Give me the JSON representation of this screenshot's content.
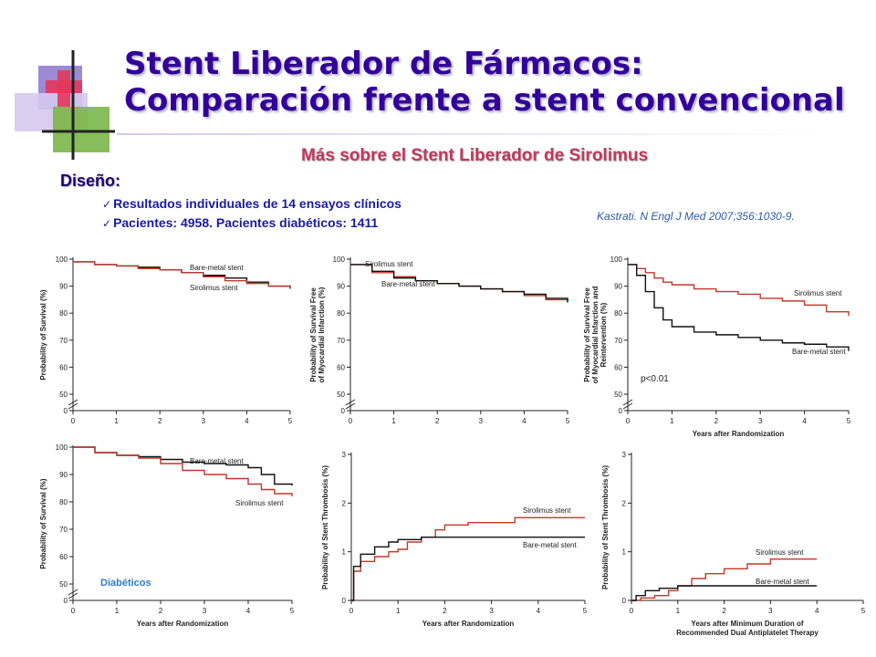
{
  "header": {
    "title_line1": "Stent Liberador de Fármacos:",
    "title_line2": "Comparación frente a stent convencional",
    "subtitle": "Más sobre el Stent Liberador de Sirolimus"
  },
  "design": {
    "heading": "Diseño:",
    "bullets": [
      "Resultados individuales de 14 ensayos clínicos",
      "Pacientes: 4958. Pacientes diabéticos: 1411"
    ]
  },
  "citation": "Kastrati. N Engl J Med 2007;356:1030-9.",
  "colors": {
    "sirolimus": "#c0392b",
    "bare_metal": "#111111",
    "title": "#330099",
    "subtitle": "#c0395e"
  },
  "chart_data": [
    {
      "type": "line",
      "ylabel": "Probability of Survival (%)",
      "xlabel": "",
      "xlim": [
        0,
        5
      ],
      "ylim": [
        50,
        100
      ],
      "axis_break": true,
      "xticks": [
        "0",
        "1",
        "2",
        "3",
        "4",
        "5"
      ],
      "yticks": [
        "0",
        "50",
        "60",
        "70",
        "80",
        "90",
        "100"
      ],
      "series": [
        {
          "name": "Bare-metal stent",
          "color": "#111111",
          "x": [
            0,
            0.5,
            1,
            1.5,
            2,
            2.5,
            3,
            3.5,
            4,
            4.5,
            5
          ],
          "y": [
            99,
            98,
            97.5,
            97,
            96,
            95,
            94,
            93,
            91.5,
            90,
            89
          ]
        },
        {
          "name": "Sirolimus stent",
          "color": "#c0392b",
          "x": [
            0,
            0.5,
            1,
            1.5,
            2,
            2.5,
            3,
            3.5,
            4,
            4.5,
            5
          ],
          "y": [
            99,
            98,
            97.5,
            96.5,
            96,
            95,
            93.5,
            92,
            91,
            90,
            89
          ]
        }
      ]
    },
    {
      "type": "line",
      "ylabel": "Probability of Survival Free of Myocardial Infarction (%)",
      "xlabel": "",
      "xlim": [
        0,
        5
      ],
      "ylim": [
        50,
        100
      ],
      "axis_break": true,
      "xticks": [
        "0",
        "1",
        "2",
        "3",
        "4",
        "5"
      ],
      "yticks": [
        "0",
        "50",
        "60",
        "70",
        "80",
        "90",
        "100"
      ],
      "series": [
        {
          "name": "Sirolimus stent",
          "color": "#c0392b",
          "x": [
            0,
            0.5,
            1,
            1.5,
            2,
            2.5,
            3,
            3.5,
            4,
            4.5,
            5
          ],
          "y": [
            98,
            95,
            93.5,
            92,
            91,
            90,
            89,
            88,
            86.5,
            85,
            84
          ]
        },
        {
          "name": "Bare-metal stent",
          "color": "#111111",
          "x": [
            0,
            0.5,
            1,
            1.5,
            2,
            2.5,
            3,
            3.5,
            4,
            4.5,
            5
          ],
          "y": [
            98,
            95.5,
            93,
            92,
            91,
            90,
            89,
            88,
            87,
            85.5,
            84
          ]
        }
      ]
    },
    {
      "type": "line",
      "ylabel": "Probability of Survival Free of Myocardial Infarction and Reintervention (%)",
      "xlabel": "Years after Randomization",
      "xlim": [
        0,
        5
      ],
      "ylim": [
        50,
        100
      ],
      "axis_break": true,
      "xticks": [
        "0",
        "1",
        "2",
        "3",
        "4",
        "5"
      ],
      "yticks": [
        "0",
        "50",
        "60",
        "70",
        "80",
        "90",
        "100"
      ],
      "annotation": "p<0.01",
      "series": [
        {
          "name": "Sirolimus stent",
          "color": "#c0392b",
          "x": [
            0,
            0.2,
            0.4,
            0.6,
            0.8,
            1,
            1.5,
            2,
            2.5,
            3,
            3.5,
            4,
            4.5,
            5
          ],
          "y": [
            98,
            96.5,
            95,
            93,
            91.5,
            90.5,
            89,
            88,
            87,
            85.5,
            84.5,
            83,
            80.5,
            79
          ]
        },
        {
          "name": "Bare-metal stent",
          "color": "#111111",
          "x": [
            0,
            0.2,
            0.4,
            0.6,
            0.8,
            1,
            1.5,
            2,
            2.5,
            3,
            3.5,
            4,
            4.5,
            5
          ],
          "y": [
            98,
            94,
            88,
            82,
            77.5,
            75,
            73,
            72,
            71,
            70,
            69,
            68.5,
            67.5,
            66
          ]
        }
      ]
    },
    {
      "type": "line",
      "ylabel": "Probability of Survival (%)",
      "xlabel": "Years after Randomization",
      "xlim": [
        0,
        5
      ],
      "ylim": [
        50,
        100
      ],
      "axis_break": true,
      "xticks": [
        "0",
        "1",
        "2",
        "3",
        "4",
        "5"
      ],
      "yticks": [
        "0",
        "50",
        "60",
        "70",
        "80",
        "90",
        "100"
      ],
      "annotation": "Diabéticos",
      "series": [
        {
          "name": "Bare-metal stent",
          "color": "#111111",
          "x": [
            0,
            0.5,
            1,
            1.5,
            2,
            2.5,
            3,
            3.5,
            4,
            4.3,
            4.6,
            5
          ],
          "y": [
            100,
            98,
            97,
            96.5,
            95.5,
            94.5,
            94,
            93.5,
            92.5,
            90,
            86.5,
            86
          ]
        },
        {
          "name": "Sirolimus stent",
          "color": "#c0392b",
          "x": [
            0,
            0.5,
            1,
            1.5,
            2,
            2.5,
            3,
            3.5,
            4,
            4.3,
            4.6,
            5
          ],
          "y": [
            100,
            98,
            97,
            96,
            94,
            91.5,
            90,
            88.5,
            86.5,
            84.5,
            83,
            82
          ]
        }
      ]
    },
    {
      "type": "line",
      "ylabel": "Probability of Stent Thrombosis (%)",
      "xlabel": "Years after Randomization",
      "xlim": [
        0,
        5
      ],
      "ylim": [
        0,
        3
      ],
      "xticks": [
        "0",
        "1",
        "2",
        "3",
        "4",
        "5"
      ],
      "yticks": [
        "0",
        "1",
        "2",
        "3"
      ],
      "series": [
        {
          "name": "Sirolimus stent",
          "color": "#c0392b",
          "x": [
            0,
            0.05,
            0.2,
            0.5,
            0.8,
            1,
            1.2,
            1.5,
            1.8,
            2,
            2.5,
            3,
            3.5,
            4,
            5
          ],
          "y": [
            0,
            0.6,
            0.8,
            0.9,
            1.0,
            1.05,
            1.2,
            1.3,
            1.45,
            1.55,
            1.6,
            1.6,
            1.7,
            1.7,
            1.7
          ]
        },
        {
          "name": "Bare-metal stent",
          "color": "#111111",
          "x": [
            0,
            0.05,
            0.2,
            0.5,
            0.8,
            1,
            1.5,
            2,
            3,
            4,
            5
          ],
          "y": [
            0,
            0.7,
            0.95,
            1.1,
            1.2,
            1.25,
            1.3,
            1.3,
            1.3,
            1.3,
            1.3
          ]
        }
      ]
    },
    {
      "type": "line",
      "ylabel": "Probability of Stent Thrombosis (%)",
      "xlabel": "Years after Minimum Duration of Recommended Dual Antiplatelet Therapy",
      "xlim": [
        0,
        5
      ],
      "ylim": [
        0,
        3
      ],
      "xticks": [
        "0",
        "1",
        "2",
        "3",
        "4",
        "5"
      ],
      "yticks": [
        "0",
        "1",
        "2",
        "3"
      ],
      "series": [
        {
          "name": "Sirolimus stent",
          "color": "#c0392b",
          "x": [
            0,
            0.2,
            0.5,
            0.8,
            1,
            1.3,
            1.6,
            2,
            2.5,
            3,
            3.5,
            4
          ],
          "y": [
            0,
            0.05,
            0.1,
            0.2,
            0.3,
            0.45,
            0.55,
            0.65,
            0.75,
            0.85,
            0.85,
            0.85
          ]
        },
        {
          "name": "Bare-metal stent",
          "color": "#111111",
          "x": [
            0,
            0.1,
            0.3,
            0.6,
            1,
            2,
            3,
            4
          ],
          "y": [
            0,
            0.1,
            0.2,
            0.25,
            0.3,
            0.3,
            0.3,
            0.3
          ]
        }
      ]
    }
  ]
}
